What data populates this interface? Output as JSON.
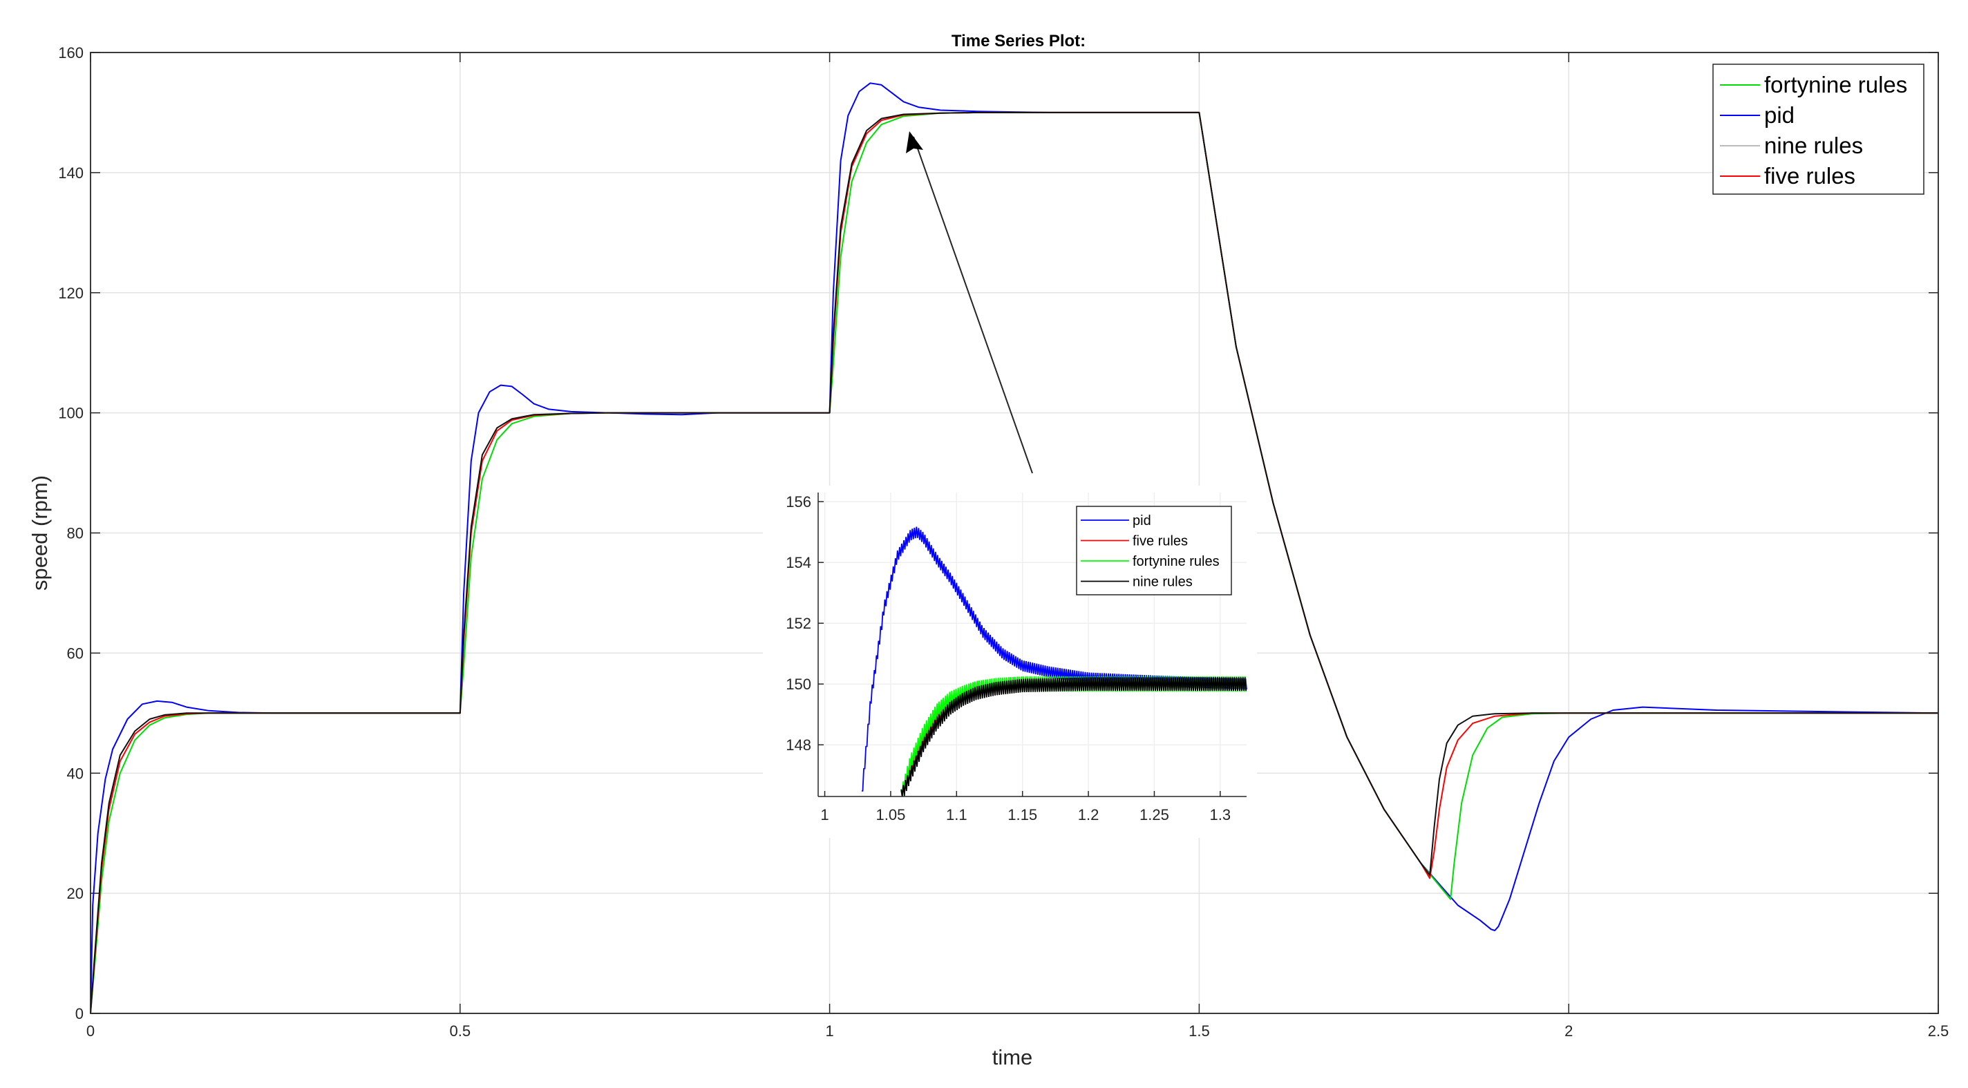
{
  "chart_data": [
    {
      "type": "line",
      "title": "Time Series Plot:",
      "xlabel": "time",
      "ylabel": "speed (rpm)",
      "xlim": [
        0,
        2.5
      ],
      "ylim": [
        0,
        160
      ],
      "xticks": [
        0,
        0.5,
        1,
        1.5,
        2,
        2.5
      ],
      "xtick_labels": [
        "0",
        "0.5",
        "1",
        "1.5",
        "2",
        "2.5"
      ],
      "yticks": [
        0,
        20,
        40,
        60,
        80,
        100,
        120,
        140,
        160
      ],
      "ytick_labels": [
        "0",
        "20",
        "40",
        "60",
        "80",
        "100",
        "120",
        "140",
        "160"
      ],
      "grid": true,
      "legend_position": "top-right",
      "legend": [
        {
          "name": "fortynine rules",
          "color": "#00dd00"
        },
        {
          "name": "pid",
          "color": "#0000ff"
        },
        {
          "name": "nine rules",
          "color": "#bbbbbb"
        },
        {
          "name": "five rules",
          "color": "#ff0000"
        }
      ],
      "reference_setpoints": [
        {
          "t_start": 0,
          "t_end": 0.5,
          "value": 50
        },
        {
          "t_start": 0.5,
          "t_end": 1.0,
          "value": 100
        },
        {
          "t_start": 1.0,
          "t_end": 1.5,
          "value": 150
        },
        {
          "t_start": 1.5,
          "t_end": 2.5,
          "value": 50
        }
      ],
      "series": [
        {
          "name": "pid",
          "color": "#0000ff",
          "x": [
            0,
            0.003,
            0.01,
            0.02,
            0.03,
            0.05,
            0.07,
            0.09,
            0.11,
            0.13,
            0.16,
            0.2,
            0.25,
            0.5,
            0.505,
            0.515,
            0.525,
            0.54,
            0.555,
            0.57,
            0.585,
            0.6,
            0.62,
            0.65,
            0.7,
            0.75,
            0.8,
            0.85,
            1.0,
            1.005,
            1.015,
            1.025,
            1.04,
            1.055,
            1.07,
            1.085,
            1.1,
            1.12,
            1.15,
            1.2,
            1.25,
            1.3,
            1.5,
            1.55,
            1.6,
            1.65,
            1.7,
            1.75,
            1.8,
            1.85,
            1.88,
            1.895,
            1.9,
            1.905,
            1.92,
            1.94,
            1.96,
            1.98,
            2.0,
            2.03,
            2.06,
            2.1,
            2.2,
            2.5
          ],
          "y": [
            0,
            18,
            30,
            39,
            44,
            49,
            51.5,
            52,
            51.8,
            51,
            50.4,
            50.1,
            50,
            50,
            70,
            92,
            100,
            103.5,
            104.6,
            104.4,
            103,
            101.5,
            100.6,
            100.2,
            100,
            99.8,
            99.7,
            100,
            100,
            120,
            142,
            149.5,
            153.5,
            154.9,
            154.6,
            153.2,
            151.8,
            150.9,
            150.4,
            150.2,
            150.1,
            150,
            150,
            111,
            85,
            63,
            46,
            34,
            25,
            18,
            15.5,
            14,
            13.8,
            14.5,
            19,
            27,
            35,
            42,
            46,
            49,
            50.5,
            51,
            50.5,
            50
          ]
        },
        {
          "name": "five rules",
          "color": "#ff0000",
          "x": [
            0,
            0.005,
            0.015,
            0.025,
            0.04,
            0.06,
            0.08,
            0.1,
            0.13,
            0.16,
            0.2,
            0.3,
            0.5,
            0.505,
            0.515,
            0.53,
            0.55,
            0.57,
            0.6,
            0.65,
            0.7,
            1.0,
            1.005,
            1.015,
            1.03,
            1.05,
            1.07,
            1.1,
            1.15,
            1.2,
            1.5,
            1.55,
            1.6,
            1.65,
            1.7,
            1.75,
            1.8,
            1.812,
            1.818,
            1.825,
            1.835,
            1.85,
            1.87,
            1.9,
            1.95,
            2.0,
            2.5
          ],
          "y": [
            0,
            8,
            24,
            34,
            42,
            46.5,
            48.5,
            49.5,
            49.9,
            50,
            50,
            50,
            50,
            62,
            80,
            92,
            97,
            98.8,
            99.6,
            99.9,
            100,
            100,
            112,
            130,
            141,
            146.5,
            148.7,
            149.6,
            149.9,
            150,
            150,
            111,
            85,
            63,
            46,
            34,
            25,
            22.5,
            27,
            34,
            41,
            45.5,
            48.3,
            49.5,
            50,
            50,
            50
          ]
        },
        {
          "name": "fortynine rules",
          "color": "#00dd00",
          "x": [
            0,
            0.005,
            0.015,
            0.025,
            0.04,
            0.06,
            0.08,
            0.1,
            0.13,
            0.16,
            0.2,
            0.3,
            0.5,
            0.505,
            0.515,
            0.53,
            0.55,
            0.57,
            0.6,
            0.65,
            0.7,
            1.0,
            1.005,
            1.015,
            1.03,
            1.05,
            1.07,
            1.1,
            1.15,
            1.2,
            1.5,
            1.55,
            1.6,
            1.65,
            1.7,
            1.75,
            1.8,
            1.84,
            1.845,
            1.855,
            1.87,
            1.89,
            1.91,
            1.95,
            2.0,
            2.5
          ],
          "y": [
            0,
            7,
            22,
            32,
            40,
            45.5,
            48,
            49.2,
            49.8,
            50,
            50,
            50,
            50,
            58,
            76,
            89,
            95.5,
            98.2,
            99.4,
            99.9,
            100,
            100,
            108,
            126,
            138.5,
            145,
            148,
            149.4,
            149.9,
            150,
            150,
            111,
            85,
            63,
            46,
            34,
            25,
            19,
            25,
            35,
            43,
            47.5,
            49.3,
            49.9,
            50,
            50
          ]
        },
        {
          "name": "nine rules",
          "color": "#111111",
          "x": [
            0,
            0.005,
            0.015,
            0.025,
            0.04,
            0.06,
            0.08,
            0.1,
            0.13,
            0.16,
            0.2,
            0.3,
            0.5,
            0.505,
            0.515,
            0.53,
            0.55,
            0.57,
            0.6,
            0.65,
            0.7,
            1.0,
            1.005,
            1.015,
            1.03,
            1.05,
            1.07,
            1.1,
            1.15,
            1.2,
            1.5,
            1.55,
            1.6,
            1.65,
            1.7,
            1.75,
            1.8,
            1.812,
            1.818,
            1.825,
            1.835,
            1.85,
            1.87,
            1.9,
            1.95,
            2.0,
            2.5
          ],
          "y": [
            0,
            8.5,
            25,
            35,
            43,
            47,
            49,
            49.7,
            50,
            50,
            50,
            50,
            50,
            63,
            81,
            93,
            97.5,
            99,
            99.7,
            99.9,
            100,
            100,
            113,
            131,
            141.5,
            147,
            149,
            149.7,
            149.9,
            150,
            150,
            111,
            85,
            63,
            46,
            34,
            25,
            23,
            31,
            39,
            45,
            48,
            49.5,
            49.9,
            50,
            50,
            50
          ]
        }
      ]
    },
    {
      "type": "line",
      "title": "",
      "xlim": [
        0.995,
        1.32
      ],
      "ylim": [
        146.3,
        156.3
      ],
      "xticks": [
        1,
        1.05,
        1.1,
        1.15,
        1.2,
        1.25,
        1.3
      ],
      "xtick_labels": [
        "1",
        "1.05",
        "1.1",
        "1.15",
        "1.2",
        "1.25",
        "1.3"
      ],
      "yticks": [
        148,
        150,
        152,
        154,
        156
      ],
      "ytick_labels": [
        "148",
        "150",
        "152",
        "154",
        "156"
      ],
      "legend_position": "top-right",
      "legend": [
        {
          "name": "pid",
          "color": "#0000ff"
        },
        {
          "name": "five rules",
          "color": "#ff0000"
        },
        {
          "name": "fortynine rules",
          "color": "#00ff00"
        },
        {
          "name": "nine rules",
          "color": "#000000"
        }
      ],
      "series": [
        {
          "name": "pid",
          "color": "#0000ff",
          "x": [
            1.028,
            1.035,
            1.045,
            1.055,
            1.065,
            1.07,
            1.075,
            1.085,
            1.095,
            1.105,
            1.12,
            1.135,
            1.15,
            1.17,
            1.2,
            1.25,
            1.32
          ],
          "y": [
            146.3,
            149.5,
            152.5,
            154.2,
            154.9,
            155.0,
            154.8,
            154.1,
            153.5,
            152.8,
            151.7,
            151.0,
            150.6,
            150.4,
            150.2,
            150.1,
            150.0
          ],
          "ripple": 0.18
        },
        {
          "name": "five rules",
          "color": "#ff0000",
          "x": [
            1.058,
            1.065,
            1.075,
            1.085,
            1.095,
            1.105,
            1.115,
            1.13,
            1.15,
            1.2,
            1.25,
            1.32
          ],
          "y": [
            146.3,
            147.2,
            148.2,
            148.9,
            149.3,
            149.6,
            149.8,
            149.9,
            150.0,
            150.0,
            150.0,
            150.0
          ],
          "ripple": 0.22
        },
        {
          "name": "fortynine rules",
          "color": "#00ff00",
          "x": [
            1.058,
            1.065,
            1.075,
            1.085,
            1.095,
            1.105,
            1.115,
            1.13,
            1.15,
            1.2,
            1.25,
            1.32
          ],
          "y": [
            146.3,
            147.4,
            148.4,
            149.1,
            149.5,
            149.7,
            149.85,
            149.95,
            150.0,
            150.0,
            150.0,
            150.0
          ],
          "ripple": 0.25
        },
        {
          "name": "nine rules",
          "color": "#000000",
          "x": [
            1.058,
            1.065,
            1.075,
            1.085,
            1.095,
            1.105,
            1.115,
            1.13,
            1.15,
            1.2,
            1.25,
            1.32
          ],
          "y": [
            146.3,
            147.0,
            148.0,
            148.7,
            149.2,
            149.5,
            149.7,
            149.85,
            149.95,
            150.0,
            150.0,
            150.0
          ],
          "ripple": 0.22
        }
      ]
    }
  ]
}
